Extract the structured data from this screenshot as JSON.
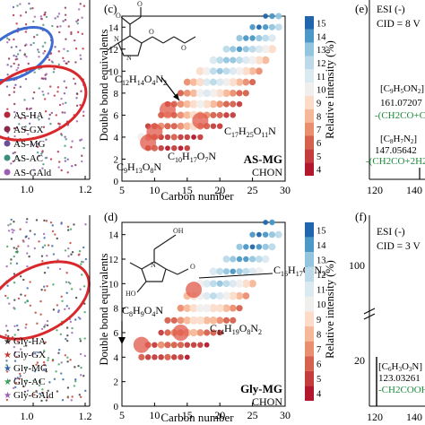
{
  "panels": {
    "a_legend": [
      "AS-HA",
      "AS-GX",
      "AS-MG",
      "AS-AC",
      "AS-GAld"
    ],
    "a_legend_colors": [
      "#b5273a",
      "#8a2a4a",
      "#6b4f9b",
      "#3a8f7a",
      "#9a5fb0"
    ],
    "a_xticks": [
      "1.0",
      "1.2"
    ],
    "b_legend": [
      "Gly-HA",
      "Gly-GX",
      "Gly-MG",
      "Gly-AC",
      "Gly-GAld"
    ],
    "b_legend_colors": [
      "#333333",
      "#c0392b",
      "#2f5fa5",
      "#3aa05a",
      "#9a5fb0"
    ],
    "b_xticks": [
      "1.0",
      "1.2"
    ],
    "c_label": "(c)",
    "d_label": "(d)",
    "e_label": "(e)",
    "f_label": "(f)",
    "c_corner": "AS-MG",
    "c_corner_sub": "CHON",
    "d_corner": "Gly-MG",
    "d_corner_sub": "CHON"
  },
  "labels": {
    "c": [
      "C12H14O4N2",
      "C17H25O11N",
      "C10H17O7N",
      "C9H13O8N"
    ],
    "d": [
      "C16H17O8N3",
      "C8H9O4N",
      "C14H19O8N2"
    ]
  },
  "spectra": {
    "e": {
      "title1": "ESI (-)",
      "title2": "CID = 8 V",
      "peaks": [
        {
          "formula": "[C9H5ON2]-",
          "mz": "161.07207",
          "loss": "-(CH2CO+CO"
        },
        {
          "formula": "[C8H7N2]-",
          "mz": "147.05642",
          "loss": "-(CH2CO+2H2O"
        }
      ],
      "xticks": [
        "120",
        "140"
      ]
    },
    "f": {
      "title1": "ESI (-)",
      "title2": "CID = 3 V",
      "yticks": [
        "100",
        "20"
      ],
      "peaks": [
        {
          "formula": "[C6H3O3N]-",
          "mz": "123.03261",
          "loss": "-CH2COOH"
        }
      ],
      "xticks": [
        "120",
        "140"
      ]
    }
  },
  "chart_data": [
    {
      "type": "scatter",
      "panel": "c",
      "title": "AS-MG CHON",
      "xlabel": "Carbon number",
      "ylabel": "Double bond equivalents",
      "colorbar_label": "Relative intensity (%)",
      "xlim": [
        5,
        30
      ],
      "ylim": [
        0,
        15
      ],
      "xticks": [
        5,
        10,
        15,
        20,
        25,
        30
      ],
      "yticks": [
        0,
        2,
        4,
        6,
        8,
        10,
        12,
        14
      ],
      "colorbar_ticks": [
        4,
        5,
        6,
        7,
        8,
        9,
        10,
        11,
        12,
        13,
        14,
        15
      ],
      "colorbar_range": [
        4,
        15
      ],
      "points": [
        [
          9,
          3,
          5
        ],
        [
          10,
          3,
          6
        ],
        [
          11,
          3,
          5
        ],
        [
          12,
          3,
          4
        ],
        [
          13,
          3,
          5
        ],
        [
          14,
          3,
          4
        ],
        [
          15,
          3,
          5
        ],
        [
          8,
          4,
          10
        ],
        [
          9,
          4,
          7
        ],
        [
          10,
          4,
          6
        ],
        [
          11,
          4,
          5
        ],
        [
          12,
          4,
          5
        ],
        [
          13,
          4,
          6
        ],
        [
          14,
          4,
          5
        ],
        [
          15,
          4,
          5
        ],
        [
          16,
          4,
          4
        ],
        [
          17,
          4,
          5
        ],
        [
          9,
          5,
          5
        ],
        [
          10,
          5,
          6
        ],
        [
          11,
          5,
          7
        ],
        [
          12,
          5,
          6
        ],
        [
          13,
          5,
          6
        ],
        [
          14,
          5,
          7
        ],
        [
          15,
          5,
          8
        ],
        [
          16,
          5,
          9
        ],
        [
          17,
          5,
          7
        ],
        [
          18,
          5,
          6
        ],
        [
          19,
          5,
          5
        ],
        [
          20,
          5,
          5
        ],
        [
          11,
          6,
          6
        ],
        [
          12,
          6,
          8
        ],
        [
          13,
          6,
          6
        ],
        [
          14,
          6,
          7
        ],
        [
          15,
          6,
          8
        ],
        [
          16,
          6,
          9
        ],
        [
          17,
          6,
          8
        ],
        [
          18,
          6,
          7
        ],
        [
          19,
          6,
          6
        ],
        [
          20,
          6,
          6
        ],
        [
          21,
          6,
          5
        ],
        [
          22,
          6,
          5
        ],
        [
          12,
          7,
          5
        ],
        [
          13,
          7,
          6
        ],
        [
          14,
          7,
          7
        ],
        [
          15,
          7,
          8
        ],
        [
          16,
          7,
          9
        ],
        [
          17,
          7,
          10
        ],
        [
          18,
          7,
          9
        ],
        [
          19,
          7,
          8
        ],
        [
          20,
          7,
          7
        ],
        [
          21,
          7,
          6
        ],
        [
          22,
          7,
          6
        ],
        [
          23,
          7,
          5
        ],
        [
          14,
          8,
          6
        ],
        [
          15,
          8,
          7
        ],
        [
          16,
          8,
          8
        ],
        [
          17,
          8,
          10
        ],
        [
          18,
          8,
          11
        ],
        [
          19,
          8,
          10
        ],
        [
          20,
          8,
          9
        ],
        [
          21,
          8,
          8
        ],
        [
          22,
          8,
          7
        ],
        [
          23,
          8,
          6
        ],
        [
          24,
          8,
          6
        ],
        [
          15,
          9,
          7
        ],
        [
          16,
          9,
          8
        ],
        [
          17,
          9,
          9
        ],
        [
          18,
          9,
          11
        ],
        [
          19,
          9,
          12
        ],
        [
          20,
          9,
          11
        ],
        [
          21,
          9,
          10
        ],
        [
          22,
          9,
          9
        ],
        [
          23,
          9,
          8
        ],
        [
          24,
          9,
          7
        ],
        [
          25,
          9,
          6
        ],
        [
          17,
          10,
          9
        ],
        [
          18,
          10,
          10
        ],
        [
          19,
          10,
          12
        ],
        [
          20,
          10,
          13
        ],
        [
          21,
          10,
          12
        ],
        [
          22,
          10,
          11
        ],
        [
          23,
          10,
          10
        ],
        [
          24,
          10,
          9
        ],
        [
          25,
          10,
          8
        ],
        [
          26,
          10,
          7
        ],
        [
          19,
          11,
          11
        ],
        [
          20,
          11,
          12
        ],
        [
          21,
          11,
          13
        ],
        [
          22,
          11,
          13
        ],
        [
          23,
          11,
          12
        ],
        [
          24,
          11,
          11
        ],
        [
          25,
          11,
          10
        ],
        [
          26,
          11,
          9
        ],
        [
          27,
          11,
          8
        ],
        [
          21,
          12,
          12
        ],
        [
          22,
          12,
          13
        ],
        [
          23,
          12,
          14
        ],
        [
          24,
          12,
          13
        ],
        [
          25,
          12,
          12
        ],
        [
          26,
          12,
          11
        ],
        [
          27,
          12,
          10
        ],
        [
          28,
          12,
          9
        ],
        [
          23,
          13,
          13
        ],
        [
          24,
          13,
          14
        ],
        [
          25,
          13,
          14
        ],
        [
          26,
          13,
          13
        ],
        [
          27,
          13,
          12
        ],
        [
          28,
          13,
          11
        ],
        [
          25,
          14,
          14
        ],
        [
          26,
          14,
          15
        ],
        [
          27,
          14,
          14
        ],
        [
          28,
          14,
          13
        ],
        [
          29,
          14,
          12
        ],
        [
          27,
          15,
          15
        ],
        [
          28,
          15,
          14
        ],
        [
          29,
          15,
          13
        ]
      ],
      "highlights": [
        {
          "label": "C12H14O4N2",
          "x": 12,
          "y": 6.5
        },
        {
          "label": "C17H25O11N",
          "x": 17,
          "y": 5.5
        },
        {
          "label": "C10H17O7N",
          "x": 10,
          "y": 4.5
        },
        {
          "label": "C9H13O8N",
          "x": 9,
          "y": 3.5
        }
      ]
    },
    {
      "type": "scatter",
      "panel": "d",
      "title": "Gly-MG CHON",
      "xlabel": "Carbon number",
      "ylabel": "Double bond equivalents",
      "colorbar_label": "Relative intensity (%)",
      "xlim": [
        5,
        30
      ],
      "ylim": [
        0,
        15
      ],
      "xticks": [
        5,
        10,
        15,
        20,
        25,
        30
      ],
      "yticks": [
        0,
        2,
        4,
        6,
        8,
        10,
        12,
        14
      ],
      "colorbar_ticks": [
        4,
        5,
        6,
        7,
        8,
        9,
        10,
        11,
        12,
        13,
        14,
        15
      ],
      "colorbar_range": [
        4,
        15
      ],
      "points": [
        [
          8,
          4,
          6
        ],
        [
          9,
          4,
          5
        ],
        [
          10,
          4,
          5
        ],
        [
          11,
          4,
          5
        ],
        [
          12,
          4,
          6
        ],
        [
          13,
          4,
          5
        ],
        [
          14,
          4,
          5
        ],
        [
          15,
          4,
          4
        ],
        [
          9,
          5,
          6
        ],
        [
          10,
          5,
          5
        ],
        [
          11,
          5,
          7
        ],
        [
          12,
          5,
          6
        ],
        [
          13,
          5,
          6
        ],
        [
          14,
          5,
          6
        ],
        [
          15,
          5,
          5
        ],
        [
          16,
          5,
          5
        ],
        [
          17,
          5,
          5
        ],
        [
          18,
          5,
          4
        ],
        [
          11,
          6,
          5
        ],
        [
          12,
          6,
          6
        ],
        [
          13,
          6,
          7
        ],
        [
          14,
          6,
          7
        ],
        [
          15,
          6,
          8
        ],
        [
          16,
          6,
          8
        ],
        [
          17,
          6,
          7
        ],
        [
          18,
          6,
          6
        ],
        [
          19,
          6,
          6
        ],
        [
          20,
          6,
          5
        ],
        [
          12,
          7,
          6
        ],
        [
          13,
          7,
          6
        ],
        [
          14,
          7,
          7
        ],
        [
          15,
          7,
          8
        ],
        [
          16,
          7,
          9
        ],
        [
          17,
          7,
          9
        ],
        [
          18,
          7,
          8
        ],
        [
          19,
          7,
          8
        ],
        [
          20,
          7,
          7
        ],
        [
          21,
          7,
          6
        ],
        [
          22,
          7,
          6
        ],
        [
          14,
          8,
          7
        ],
        [
          15,
          8,
          8
        ],
        [
          16,
          8,
          9
        ],
        [
          17,
          8,
          10
        ],
        [
          18,
          8,
          10
        ],
        [
          19,
          8,
          9
        ],
        [
          20,
          8,
          9
        ],
        [
          21,
          8,
          8
        ],
        [
          22,
          8,
          7
        ],
        [
          23,
          8,
          6
        ],
        [
          15,
          9,
          8
        ],
        [
          16,
          9,
          9
        ],
        [
          17,
          9,
          10
        ],
        [
          18,
          9,
          11
        ],
        [
          19,
          9,
          12
        ],
        [
          20,
          9,
          11
        ],
        [
          21,
          9,
          10
        ],
        [
          22,
          9,
          9
        ],
        [
          23,
          9,
          8
        ],
        [
          24,
          9,
          7
        ],
        [
          17,
          10,
          10
        ],
        [
          18,
          10,
          11
        ],
        [
          19,
          10,
          12
        ],
        [
          20,
          10,
          13
        ],
        [
          21,
          10,
          12
        ],
        [
          22,
          10,
          11
        ],
        [
          23,
          10,
          10
        ],
        [
          24,
          10,
          9
        ],
        [
          25,
          10,
          8
        ],
        [
          19,
          11,
          11
        ],
        [
          20,
          11,
          12
        ],
        [
          21,
          11,
          13
        ],
        [
          22,
          11,
          14
        ],
        [
          23,
          11,
          13
        ],
        [
          24,
          11,
          12
        ],
        [
          25,
          11,
          11
        ],
        [
          26,
          11,
          10
        ],
        [
          21,
          12,
          12
        ],
        [
          22,
          12,
          13
        ],
        [
          23,
          12,
          14
        ],
        [
          24,
          12,
          14
        ],
        [
          25,
          12,
          13
        ],
        [
          26,
          12,
          12
        ],
        [
          27,
          12,
          11
        ],
        [
          23,
          13,
          13
        ],
        [
          24,
          13,
          14
        ],
        [
          25,
          13,
          15
        ],
        [
          26,
          13,
          14
        ],
        [
          27,
          13,
          13
        ],
        [
          28,
          13,
          12
        ],
        [
          25,
          14,
          14
        ],
        [
          26,
          14,
          15
        ],
        [
          27,
          14,
          14
        ],
        [
          28,
          14,
          13
        ],
        [
          29,
          14,
          12
        ],
        [
          27,
          15,
          15
        ],
        [
          28,
          15,
          14
        ]
      ],
      "highlights": [
        {
          "label": "C16H17O8N3",
          "x": 16,
          "y": 9.5
        },
        {
          "label": "C8H9O4N",
          "x": 8,
          "y": 5
        },
        {
          "label": "C14H19O8N2",
          "x": 14,
          "y": 6
        }
      ]
    }
  ]
}
